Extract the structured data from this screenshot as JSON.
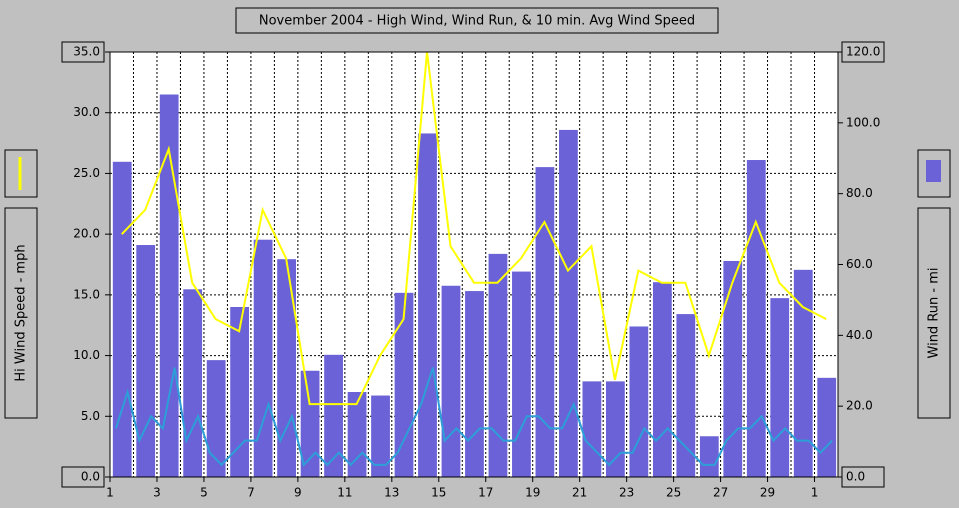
{
  "chart_data": {
    "type": "bar",
    "title": "November 2004 - High Wind, Wind Run, & 10 min. Avg Wind Speed",
    "y_label": "Hi Wind Speed - mph",
    "y2_label": "Wind Run - mi",
    "xlim": [
      1,
      32
    ],
    "xticks": [
      1,
      3,
      5,
      7,
      9,
      11,
      13,
      15,
      17,
      19,
      21,
      23,
      25,
      27,
      29,
      {
        "value": 31,
        "label": "1"
      }
    ],
    "ylim": [
      0,
      35
    ],
    "yticks": [
      {
        "value": 0,
        "label": "0.0"
      },
      {
        "value": 5,
        "label": "5.0"
      },
      {
        "value": 10,
        "label": "10.0"
      },
      {
        "value": 15,
        "label": "15.0"
      },
      {
        "value": 20,
        "label": "20.0"
      },
      {
        "value": 25,
        "label": "25.0"
      },
      {
        "value": 30,
        "label": "30.0"
      },
      {
        "value": 35,
        "label": "35.0"
      }
    ],
    "y2lim": [
      0,
      120
    ],
    "y2ticks": [
      {
        "value": 0,
        "label": "0.0"
      },
      {
        "value": 20,
        "label": "20.0"
      },
      {
        "value": 40,
        "label": "40.0"
      },
      {
        "value": 60,
        "label": "60.0"
      },
      {
        "value": 80,
        "label": "80.0"
      },
      {
        "value": 100,
        "label": "100.0"
      },
      {
        "value": 120,
        "label": "120.0"
      }
    ],
    "grid": true,
    "x": [
      1,
      2,
      3,
      4,
      5,
      6,
      7,
      8,
      9,
      10,
      11,
      12,
      13,
      14,
      15,
      16,
      17,
      18,
      19,
      20,
      21,
      22,
      23,
      24,
      25,
      26,
      27,
      28,
      29,
      30,
      31
    ],
    "series": [
      {
        "type": "bar",
        "axis": "y2",
        "color": "#6a62d6",
        "values": [
          89,
          65.5,
          108,
          53,
          33,
          48,
          67,
          61.5,
          30,
          34.5,
          24,
          23,
          52,
          97,
          54,
          52.5,
          63,
          58,
          87.5,
          98,
          27,
          27,
          42.5,
          55,
          46,
          11.5,
          61,
          89.5,
          50.5,
          58.5,
          28
        ]
      },
      {
        "type": "line",
        "axis": "y",
        "color": "#ffff00",
        "values": [
          20,
          22,
          27,
          16,
          13,
          12,
          22,
          18,
          6,
          6,
          6,
          10,
          13,
          35,
          19,
          16,
          16,
          18,
          21,
          17,
          19,
          8,
          17,
          16,
          16,
          10,
          16,
          21,
          16,
          14,
          13
        ]
      },
      {
        "type": "line",
        "axis": "y",
        "color": "#2c9fd8",
        "x": [
          1.25,
          1.75,
          2.25,
          2.75,
          3.25,
          3.75,
          4.25,
          4.75,
          5.25,
          5.75,
          6.25,
          6.75,
          7.25,
          7.75,
          8.25,
          8.75,
          9.25,
          9.75,
          10.25,
          10.75,
          11.25,
          11.75,
          12.25,
          12.75,
          13.25,
          13.75,
          14.25,
          14.75,
          15.25,
          15.75,
          16.25,
          16.75,
          17.25,
          17.75,
          18.25,
          18.75,
          19.25,
          19.75,
          20.25,
          20.75,
          21.25,
          21.75,
          22.25,
          22.75,
          23.25,
          23.75,
          24.25,
          24.75,
          25.25,
          25.75,
          26.25,
          26.75,
          27.25,
          27.75,
          28.25,
          28.75,
          29.25,
          29.75,
          30.25,
          30.75,
          31.25,
          31.75
        ],
        "values": [
          4,
          7,
          3,
          5,
          4,
          9,
          3,
          5,
          2,
          1,
          2,
          3,
          3,
          6,
          3,
          5,
          1,
          2,
          1,
          2,
          1,
          2,
          1,
          1,
          2,
          4,
          6,
          9,
          3,
          4,
          3,
          4,
          4,
          3,
          3,
          5,
          5,
          4,
          4,
          6,
          3,
          2,
          1,
          2,
          2,
          4,
          3,
          4,
          3,
          2,
          1,
          1,
          3,
          4,
          4,
          5,
          3,
          4,
          3,
          3,
          2,
          3
        ]
      }
    ]
  }
}
